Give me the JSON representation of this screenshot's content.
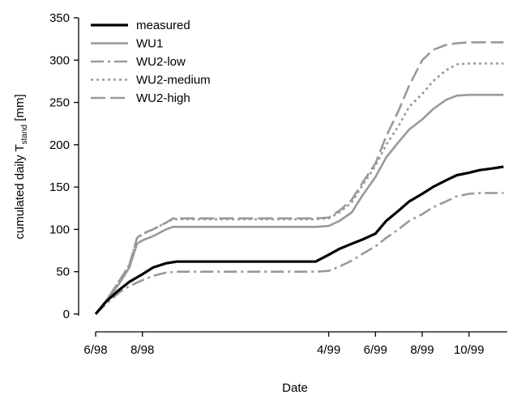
{
  "chart_data": {
    "type": "line",
    "title": "",
    "xlabel": "Date",
    "ylabel": {
      "main": "cumulated daily T",
      "subscript": "stand",
      "unit": " [mm]"
    },
    "ylim": [
      0,
      350
    ],
    "yticks": [
      "0",
      "50",
      "100",
      "150",
      "200",
      "250",
      "300",
      "350"
    ],
    "xlim": [
      "1998-06-01",
      "1999-11-20"
    ],
    "xticks": [
      {
        "label": "6/98",
        "date": "1998-06-01"
      },
      {
        "label": "8/98",
        "date": "1998-08-01"
      },
      {
        "label": "4/99",
        "date": "1999-04-01"
      },
      {
        "label": "6/99",
        "date": "1999-06-01"
      },
      {
        "label": "8/99",
        "date": "1999-08-01"
      },
      {
        "label": "10/99",
        "date": "1999-10-01"
      }
    ],
    "legend_position": "top-left",
    "series": [
      {
        "name": "measured",
        "color": "#000000",
        "dash": "solid",
        "width": "thick",
        "x": [
          "1998-06-01",
          "1998-06-15",
          "1998-07-01",
          "1998-07-15",
          "1998-08-01",
          "1998-08-15",
          "1998-09-01",
          "1998-09-15",
          "1998-10-01",
          "1999-03-15",
          "1999-04-01",
          "1999-04-15",
          "1999-05-01",
          "1999-05-15",
          "1999-06-01",
          "1999-06-15",
          "1999-07-01",
          "1999-07-15",
          "1999-08-01",
          "1999-08-15",
          "1999-09-01",
          "1999-09-15",
          "1999-10-01",
          "1999-10-15",
          "1999-11-01",
          "1999-11-15"
        ],
        "y": [
          0,
          15,
          28,
          38,
          47,
          55,
          60,
          62,
          62,
          62,
          70,
          77,
          83,
          88,
          95,
          110,
          122,
          133,
          142,
          150,
          158,
          164,
          167,
          170,
          172,
          174
        ]
      },
      {
        "name": "WU1",
        "color": "#999999",
        "dash": "solid",
        "width": "medium",
        "x": [
          "1998-06-01",
          "1998-06-15",
          "1998-07-01",
          "1998-07-15",
          "1998-07-25",
          "1998-08-01",
          "1998-08-15",
          "1998-09-01",
          "1998-09-10",
          "1999-03-15",
          "1999-04-01",
          "1999-04-15",
          "1999-05-01",
          "1999-05-15",
          "1999-06-01",
          "1999-06-15",
          "1999-07-01",
          "1999-07-15",
          "1999-08-01",
          "1999-08-15",
          "1999-09-01",
          "1999-09-15",
          "1999-10-01",
          "1999-10-15",
          "1999-11-15"
        ],
        "y": [
          0,
          15,
          35,
          55,
          83,
          87,
          92,
          100,
          103,
          103,
          104,
          110,
          120,
          140,
          162,
          185,
          203,
          218,
          230,
          242,
          253,
          258,
          259,
          259,
          259
        ]
      },
      {
        "name": "WU2-low",
        "color": "#999999",
        "dash": "long-dash-dot",
        "width": "medium",
        "x": [
          "1998-06-01",
          "1998-06-15",
          "1998-07-01",
          "1998-07-15",
          "1998-08-01",
          "1998-08-15",
          "1998-09-01",
          "1998-09-15",
          "1999-03-15",
          "1999-04-01",
          "1999-04-15",
          "1999-05-01",
          "1999-05-15",
          "1999-06-01",
          "1999-06-15",
          "1999-07-01",
          "1999-07-15",
          "1999-08-01",
          "1999-08-15",
          "1999-09-01",
          "1999-09-15",
          "1999-10-01",
          "1999-10-15",
          "1999-11-01",
          "1999-11-15"
        ],
        "y": [
          0,
          12,
          25,
          33,
          40,
          45,
          49,
          50,
          50,
          51,
          56,
          63,
          71,
          80,
          90,
          100,
          110,
          118,
          126,
          133,
          139,
          142,
          143,
          143,
          143
        ]
      },
      {
        "name": "WU2-medium",
        "color": "#999999",
        "dash": "dotted",
        "width": "medium",
        "x": [
          "1998-06-01",
          "1998-06-15",
          "1998-07-01",
          "1998-07-15",
          "1998-07-25",
          "1998-08-01",
          "1998-08-15",
          "1998-09-01",
          "1998-09-10",
          "1999-03-15",
          "1999-04-01",
          "1999-04-15",
          "1999-05-01",
          "1999-05-15",
          "1999-06-01",
          "1999-06-15",
          "1999-07-01",
          "1999-07-15",
          "1999-08-01",
          "1999-08-15",
          "1999-09-01",
          "1999-09-15",
          "1999-10-01",
          "1999-10-15",
          "1999-11-15"
        ],
        "y": [
          0,
          16,
          38,
          58,
          90,
          94,
          100,
          108,
          112,
          112,
          113,
          120,
          132,
          152,
          175,
          200,
          222,
          245,
          260,
          275,
          288,
          295,
          296,
          296,
          296
        ]
      },
      {
        "name": "WU2-high",
        "color": "#999999",
        "dash": "long-dash",
        "width": "medium",
        "x": [
          "1998-06-01",
          "1998-06-15",
          "1998-07-01",
          "1998-07-15",
          "1998-07-25",
          "1998-08-01",
          "1998-08-15",
          "1998-09-01",
          "1998-09-10",
          "1999-03-15",
          "1999-04-01",
          "1999-04-15",
          "1999-05-01",
          "1999-05-15",
          "1999-06-01",
          "1999-06-15",
          "1999-07-01",
          "1999-07-15",
          "1999-08-01",
          "1999-08-15",
          "1999-09-01",
          "1999-09-15",
          "1999-10-01",
          "1999-10-15",
          "1999-11-15"
        ],
        "y": [
          0,
          16,
          38,
          58,
          90,
          95,
          100,
          108,
          113,
          113,
          114,
          122,
          135,
          155,
          178,
          210,
          240,
          270,
          300,
          312,
          318,
          320,
          321,
          321,
          321
        ]
      }
    ]
  }
}
